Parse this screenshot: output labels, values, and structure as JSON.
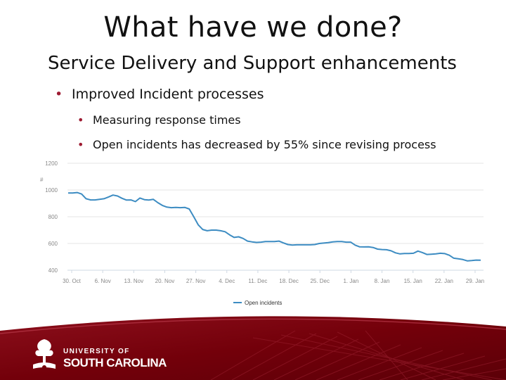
{
  "slide": {
    "title": "What have we done?",
    "subtitle": "Service Delivery and Support enhancements",
    "bullets": [
      {
        "text": "Improved Incident processes",
        "level": 1
      },
      {
        "text": "Measuring response times",
        "level": 2
      },
      {
        "text": "Open incidents has decreased by 55% since revising process",
        "level": 2
      }
    ],
    "bullet_symbol": "•",
    "accent_color": "#9e1b32"
  },
  "chart_data": {
    "type": "line",
    "ylabel": "#",
    "ylim": [
      400,
      1200
    ],
    "yticks": [
      "1200",
      "1000",
      "800",
      "600",
      "400"
    ],
    "ytick_values": [
      1200,
      1000,
      800,
      600,
      400
    ],
    "xticks": [
      "30. Oct",
      "6. Nov",
      "13. Nov",
      "20. Nov",
      "27. Nov",
      "4. Dec",
      "11. Dec",
      "18. Dec",
      "25. Dec",
      "1. Jan",
      "8. Jan",
      "15. Jan",
      "22. Jan",
      "29. Jan"
    ],
    "grid": true,
    "legend_position": "bottom-center",
    "series": [
      {
        "name": "Open incidents",
        "color": "#3d8cc2",
        "values": [
          978,
          978,
          981,
          970,
          935,
          926,
          926,
          930,
          935,
          948,
          962,
          955,
          938,
          925,
          926,
          913,
          940,
          928,
          925,
          930,
          905,
          885,
          872,
          868,
          870,
          868,
          870,
          858,
          800,
          740,
          705,
          695,
          700,
          700,
          695,
          688,
          665,
          645,
          650,
          638,
          618,
          612,
          608,
          610,
          615,
          615,
          615,
          618,
          604,
          592,
          588,
          590,
          590,
          590,
          590,
          592,
          600,
          603,
          607,
          612,
          614,
          614,
          610,
          610,
          588,
          575,
          574,
          575,
          570,
          558,
          555,
          553,
          545,
          530,
          522,
          525,
          525,
          527,
          543,
          532,
          518,
          520,
          522,
          527,
          524,
          512,
          490,
          485,
          480,
          470,
          472,
          476,
          475
        ]
      }
    ]
  },
  "branding": {
    "line1": "UNIVERSITY OF",
    "line2": "SOUTH CAROLINA",
    "logo_icon": "university-seal-icon",
    "primary_color": "#73000a"
  }
}
